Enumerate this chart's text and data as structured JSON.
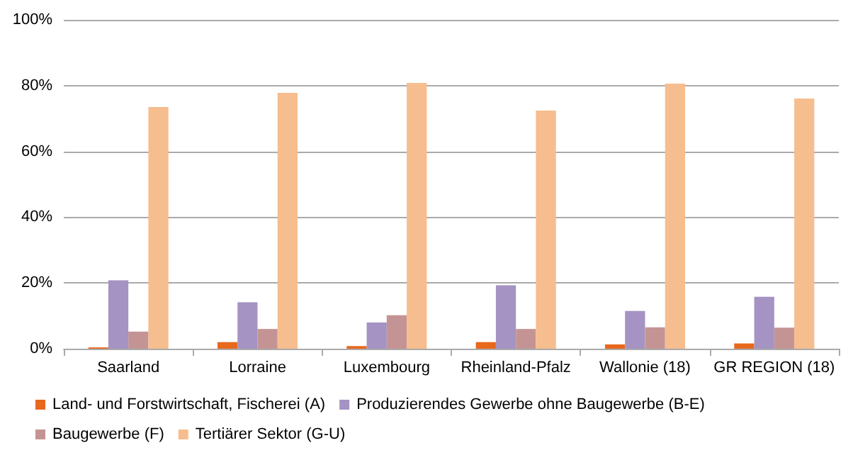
{
  "chart_data": {
    "type": "bar",
    "categories": [
      "Saarland",
      "Lorraine",
      "Luxembourg",
      "Rheinland-Pfalz",
      "Wallonie (18)",
      "GR REGION (18)"
    ],
    "series": [
      {
        "name": "Land- und Forstwirtschaft, Fischerei (A)",
        "color": "#e8681e",
        "values": [
          0.4,
          2.0,
          0.8,
          2.0,
          1.3,
          1.6
        ]
      },
      {
        "name": "Produzierendes Gewerbe ohne Baugewerbe (B-E)",
        "color": "#a493c3",
        "values": [
          20.8,
          14.1,
          8.0,
          19.3,
          11.5,
          15.8
        ]
      },
      {
        "name": "Baugewerbe (F)",
        "color": "#c49494",
        "values": [
          5.2,
          6.0,
          10.2,
          6.0,
          6.5,
          6.4
        ]
      },
      {
        "name": "Tertiärer Sektor (G-U)",
        "color": "#f6bd8f",
        "values": [
          73.5,
          77.8,
          80.8,
          72.4,
          80.6,
          76.1
        ]
      }
    ],
    "ylim": [
      0,
      100
    ],
    "yticks": [
      {
        "value": 0,
        "label": "0%"
      },
      {
        "value": 20,
        "label": "20%"
      },
      {
        "value": 40,
        "label": "40%"
      },
      {
        "value": 60,
        "label": "60%"
      },
      {
        "value": 80,
        "label": "80%"
      },
      {
        "value": 100,
        "label": "100%"
      }
    ],
    "grid": "y",
    "legend": "bottom"
  }
}
